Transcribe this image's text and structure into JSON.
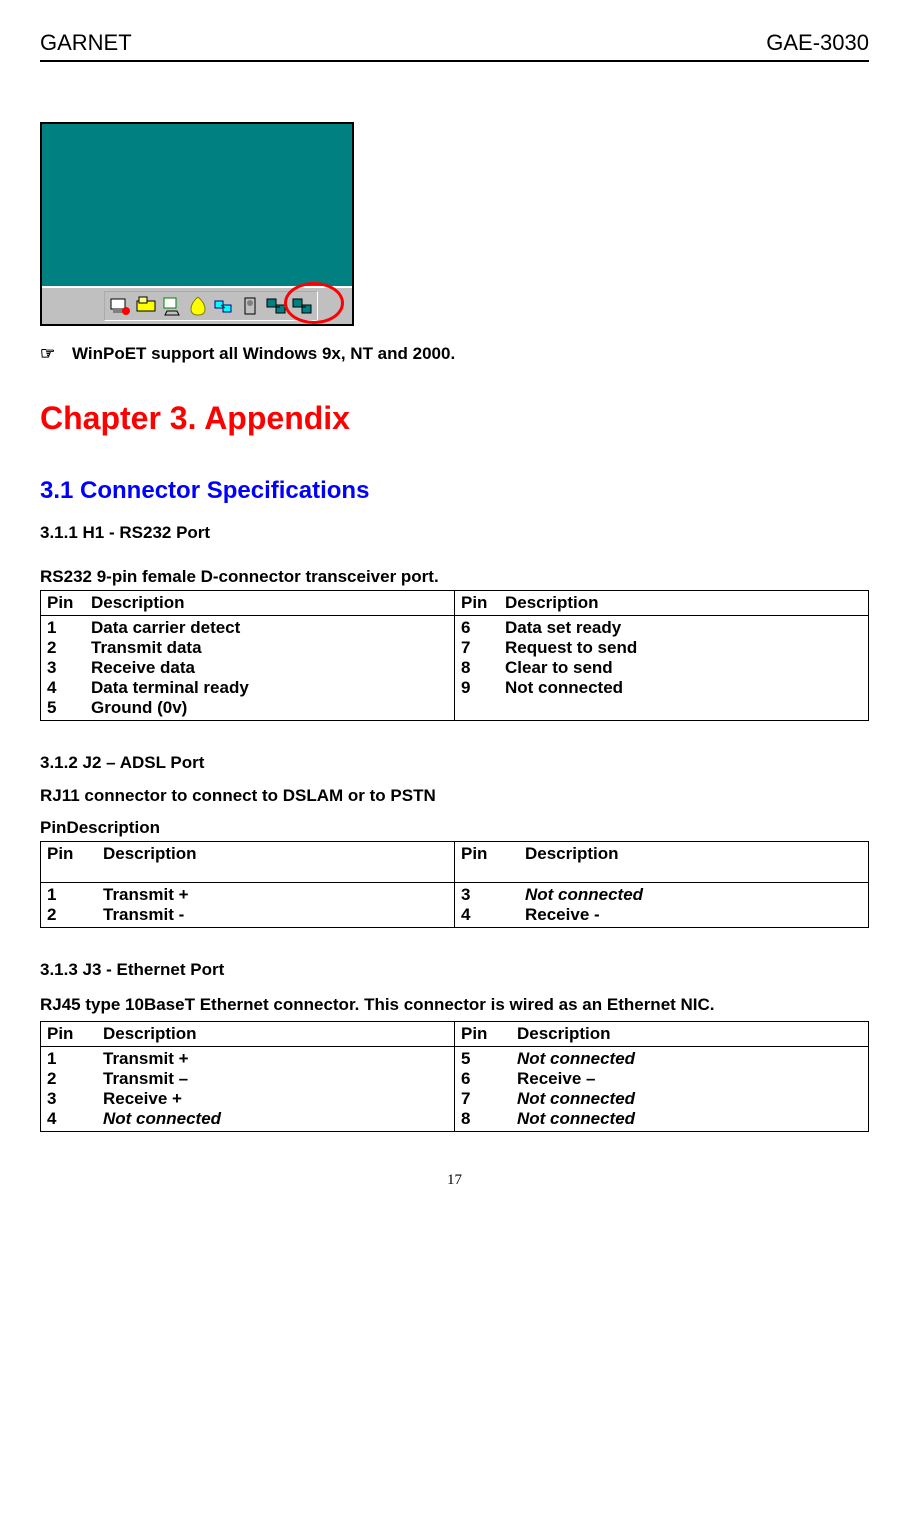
{
  "header": {
    "left": "GARNET",
    "right": "GAE-3030"
  },
  "colors": {
    "desktop_bg": "#008080",
    "taskbar_bg": "#c0c0c0",
    "circle": "#ff0000",
    "chapter_title": "#ff0000",
    "section_title": "#0000ff"
  },
  "note": {
    "pointer": "☞",
    "text": "WinPoET support all Windows 9x, NT and 2000."
  },
  "chapter": "Chapter 3. Appendix",
  "section_3_1": {
    "title": "3.1 Connector Specifications",
    "s1": {
      "heading": "3.1.1 H1 - RS232 Port",
      "intro": "RS232 9-pin female D-connector transceiver port.",
      "col_headers": {
        "left": {
          "pin": "Pin",
          "desc": "Description"
        },
        "right": {
          "pin": "Pin",
          "desc": "Description"
        }
      },
      "left_rows": [
        {
          "pin": "1",
          "desc": "Data carrier detect",
          "italic": false
        },
        {
          "pin": "2",
          "desc": "Transmit data",
          "italic": false
        },
        {
          "pin": "3",
          "desc": "Receive data",
          "italic": false
        },
        {
          "pin": "4",
          "desc": "Data terminal ready",
          "italic": false
        },
        {
          "pin": "5",
          "desc": "Ground (0v)",
          "italic": false
        }
      ],
      "right_rows": [
        {
          "pin": "6",
          "desc": "Data set ready",
          "italic": false
        },
        {
          "pin": "7",
          "desc": "Request to send",
          "italic": false
        },
        {
          "pin": "8",
          "desc": "Clear to send",
          "italic": false
        },
        {
          "pin": "9",
          "desc": "Not connected",
          "italic": false
        }
      ]
    },
    "s2": {
      "heading": "3.1.2 J2 – ADSL Port",
      "intro1": "RJ11 connector to connect to DSLAM or to PSTN",
      "intro2": "PinDescription",
      "col_headers": {
        "left": {
          "pin": "Pin",
          "desc": "Description"
        },
        "right": {
          "pin": "Pin",
          "desc": "Description"
        }
      },
      "left_rows": [
        {
          "pin": "1",
          "desc": "Transmit +",
          "italic": false
        },
        {
          "pin": "2",
          "desc": "Transmit -",
          "italic": false
        }
      ],
      "right_rows": [
        {
          "pin": "3",
          "desc": "Not connected",
          "italic": true
        },
        {
          "pin": "4",
          "desc": "Receive -",
          "italic": false
        }
      ]
    },
    "s3": {
      "heading": "3.1.3 J3 - Ethernet Port",
      "intro": "RJ45 type 10BaseT Ethernet connector. This connector is wired as an Ethernet NIC.",
      "col_headers": {
        "left": {
          "pin": "Pin",
          "desc": "Description"
        },
        "right": {
          "pin": "Pin",
          "desc": "Description"
        }
      },
      "left_rows": [
        {
          "pin": "1",
          "desc": "Transmit +",
          "italic": false
        },
        {
          "pin": "2",
          "desc": "Transmit –",
          "italic": false
        },
        {
          "pin": "3",
          "desc": "Receive +",
          "italic": false
        },
        {
          "pin": "4",
          "desc": "Not connected",
          "italic": true
        }
      ],
      "right_rows": [
        {
          "pin": "5",
          "desc": "Not connected",
          "italic": true
        },
        {
          "pin": "6",
          "desc": "Receive –",
          "italic": false
        },
        {
          "pin": "7",
          "desc": "Not connected",
          "italic": true
        },
        {
          "pin": "8",
          "desc": "Not connected",
          "italic": true
        }
      ]
    }
  },
  "page_number": "17"
}
